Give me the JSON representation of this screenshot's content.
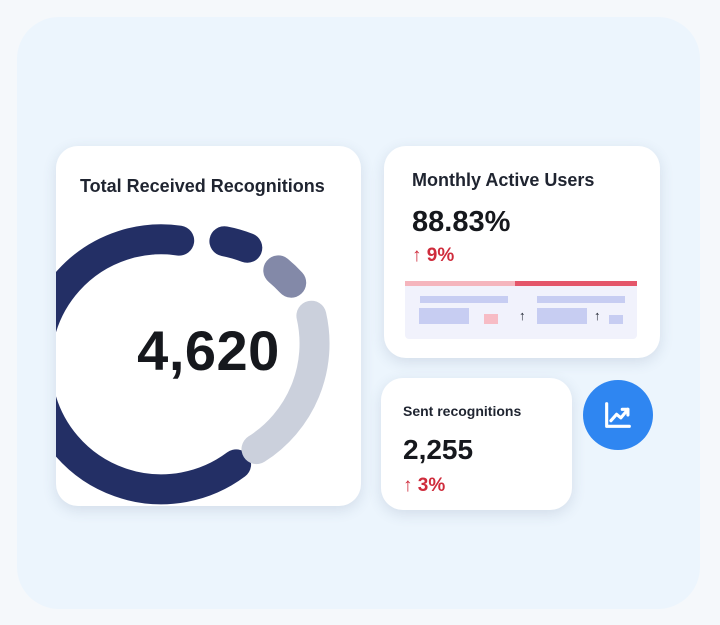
{
  "total_card": {
    "title": "Total Received Recognitions",
    "value": "4,620"
  },
  "mau_card": {
    "title": "Monthly Active Users",
    "value": "88.83%",
    "delta": "↑ 9%"
  },
  "sent_card": {
    "title": "Sent recognitions",
    "value": "2,255",
    "delta": "↑ 3%"
  },
  "icons": {
    "trend": "trending-up-icon",
    "up_arrow": "arrow-up-icon"
  },
  "colors": {
    "donut_primary": "#232f65",
    "donut_secondary": "#8389a8",
    "donut_track": "#cbd0dc",
    "delta_red": "#cf2c3c",
    "accent_blue": "#2f86f1"
  }
}
